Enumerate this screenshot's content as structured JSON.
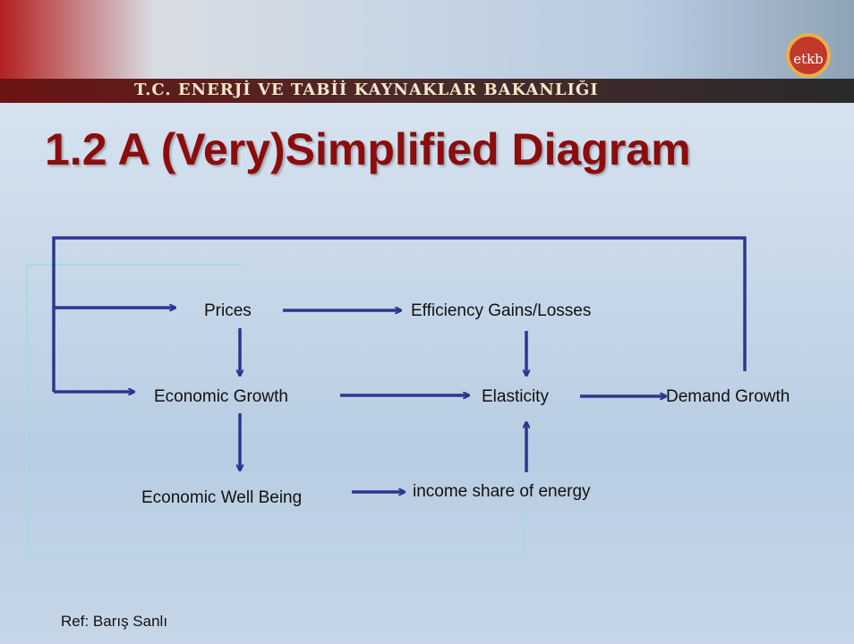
{
  "header": {
    "title": "T.C. ENERJİ VE TABİİ KAYNAKLAR BAKANLIĞI",
    "logo": "etkb"
  },
  "title": "1.2 A (Very)Simplified Diagram",
  "nodes": [
    {
      "label": "Prices"
    },
    {
      "label": "Efficiency Gains/Losses"
    },
    {
      "label": "Economic Growth"
    },
    {
      "label": "Elasticity"
    },
    {
      "label": "Demand Growth"
    },
    {
      "label": "Economic Well Being"
    },
    {
      "label": "income share of energy"
    }
  ],
  "footer": "Ref: Barış Sanlı"
}
